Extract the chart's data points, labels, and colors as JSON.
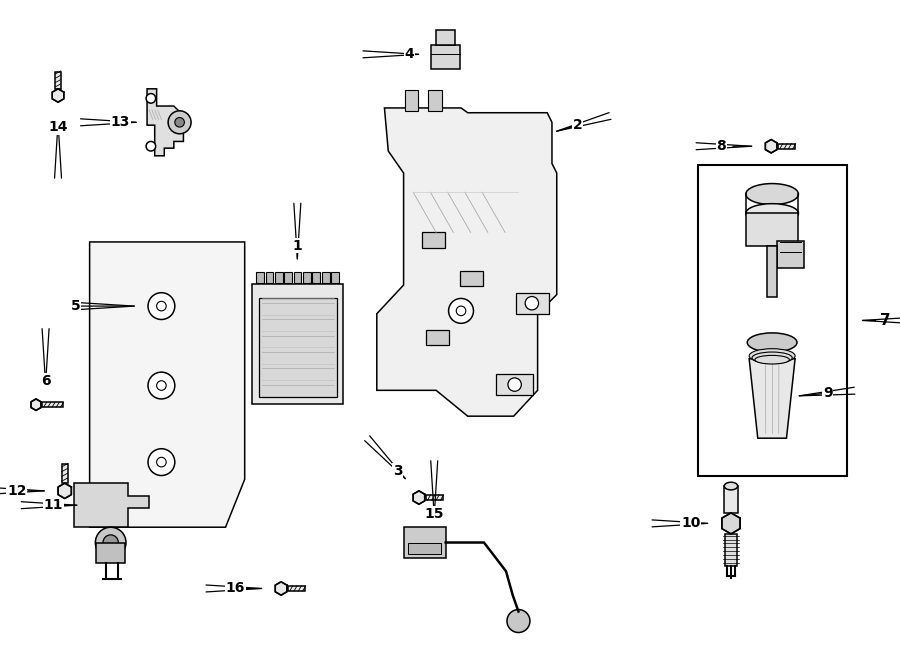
{
  "bg_color": "#ffffff",
  "line_color": "#000000",
  "lw": 1.1,
  "figsize": [
    9.0,
    6.61
  ],
  "dpi": 100
}
